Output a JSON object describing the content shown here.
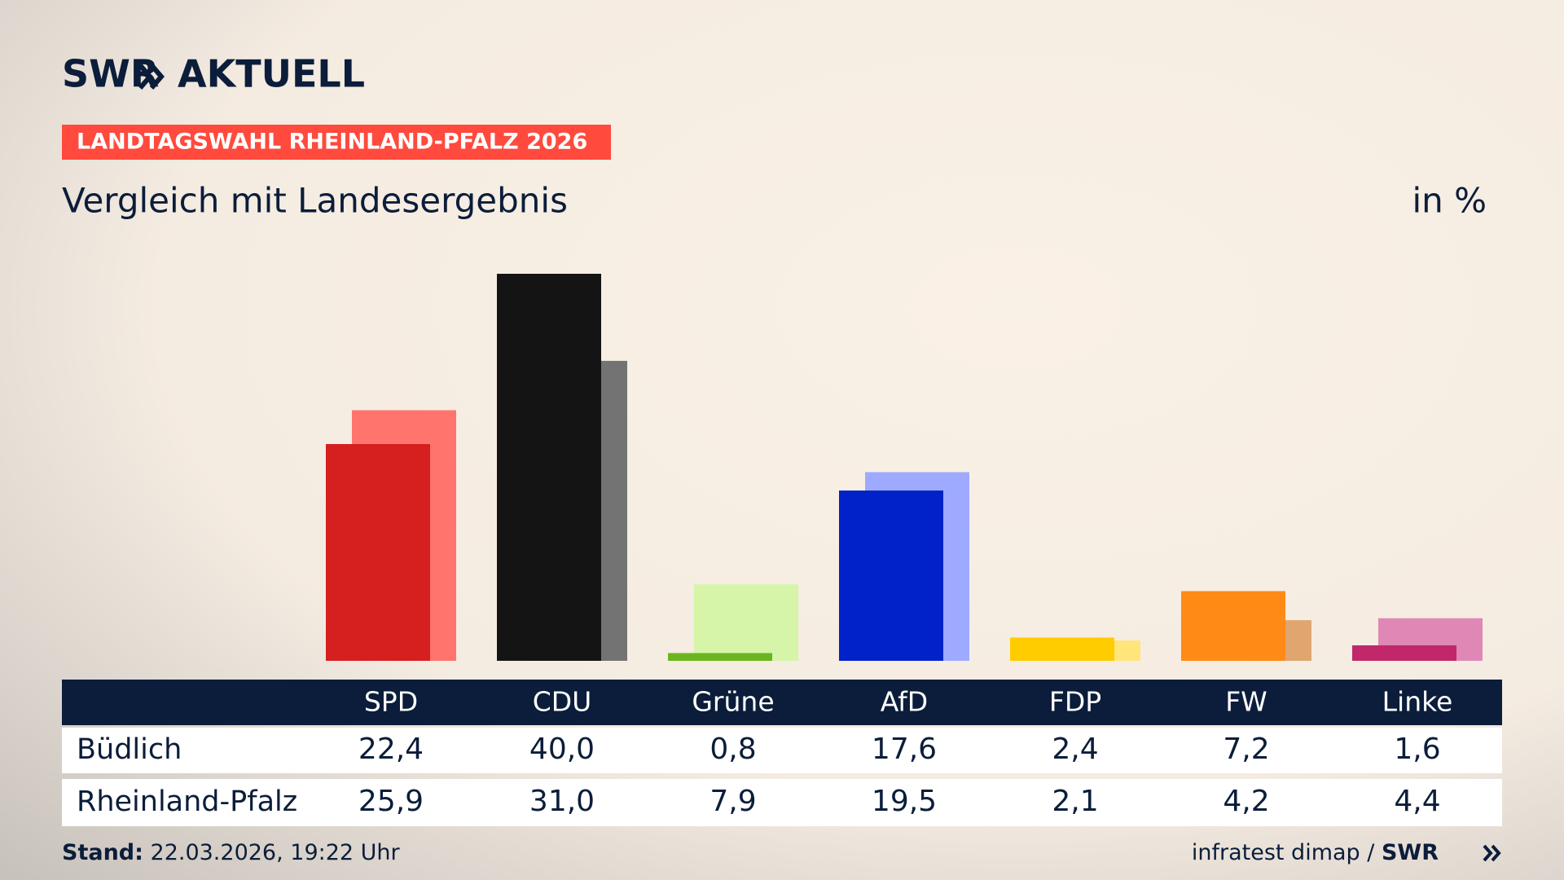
{
  "chart_data": {
    "type": "bar",
    "title": "Vergleich mit Landesergebnis",
    "unit": "in %",
    "categories": [
      "SPD",
      "CDU",
      "Grüne",
      "AfD",
      "FDP",
      "FW",
      "Linke"
    ],
    "series": [
      {
        "name": "Büdlich",
        "colors": [
          "#d61f1f",
          "#141414",
          "#6ab520",
          "#0022c8",
          "#ffcc00",
          "#ff8a16",
          "#c0286a"
        ],
        "values": [
          22.4,
          40.0,
          0.8,
          17.6,
          2.4,
          7.2,
          1.6
        ],
        "value_labels": [
          "22,4",
          "40,0",
          "0,8",
          "17,6",
          "2,4",
          "7,2",
          "1,6"
        ]
      },
      {
        "name": "Rheinland-Pfalz",
        "colors": [
          "#ff746d",
          "#737373",
          "#d6f5a8",
          "#9eaaff",
          "#ffe57a",
          "#dfa670",
          "#df88b5"
        ],
        "values": [
          25.9,
          31.0,
          7.9,
          19.5,
          2.1,
          4.2,
          4.4
        ],
        "value_labels": [
          "25,9",
          "31,0",
          "7,9",
          "19,5",
          "2,1",
          "4,2",
          "4,4"
        ]
      }
    ]
  },
  "header": {
    "brand": "SWR",
    "brand_suffix": "AKTUELL",
    "tag": "LANDTAGSWAHL RHEINLAND-PFALZ 2026"
  },
  "footer": {
    "stand_label": "Stand:",
    "stand": "22.03.2026, 19:22 Uhr",
    "source": "infratest dimap /",
    "source_brand": "SWR"
  }
}
